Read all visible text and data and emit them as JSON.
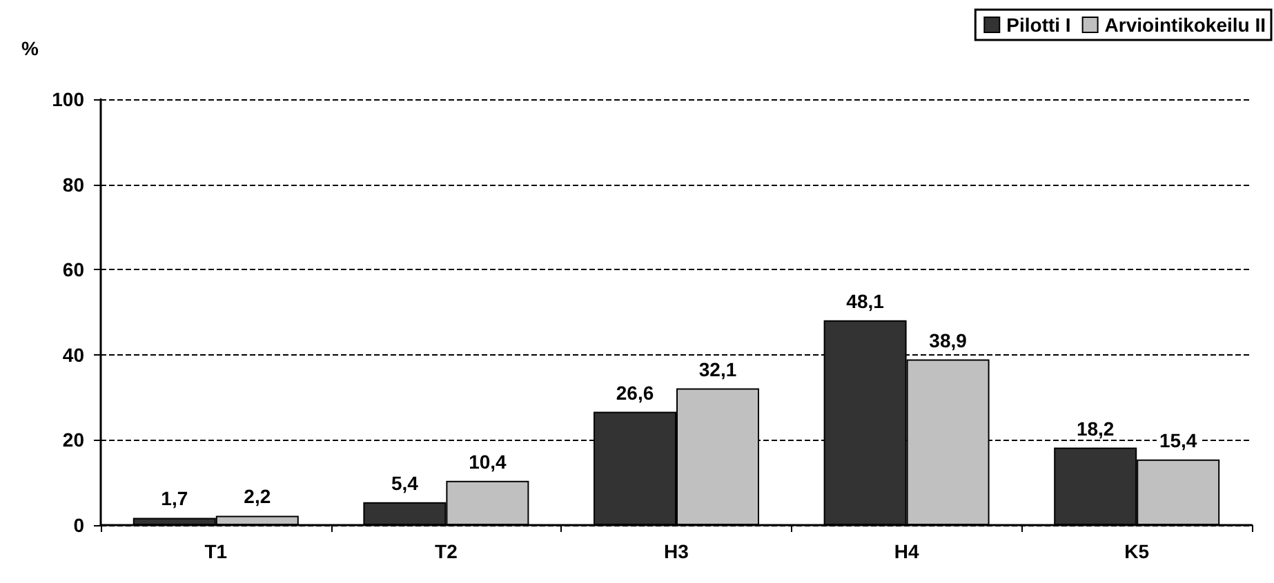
{
  "chart_data": {
    "type": "bar",
    "ylabel": "%",
    "categories": [
      "T1",
      "T2",
      "H3",
      "H4",
      "K5"
    ],
    "series": [
      {
        "name": "Pilotti I",
        "color": "#333333",
        "values": [
          1.7,
          5.4,
          26.6,
          48.1,
          18.2
        ],
        "value_labels": [
          "1,7",
          "5,4",
          "26,6",
          "48,1",
          "18,2"
        ]
      },
      {
        "name": "Arviointikokeilu II",
        "color": "#c0c0c0",
        "values": [
          2.2,
          10.4,
          32.1,
          38.9,
          15.4
        ],
        "value_labels": [
          "2,2",
          "10,4",
          "32,1",
          "38,9",
          "15,4"
        ]
      }
    ],
    "ylim": [
      0,
      100
    ],
    "yticks": [
      0,
      20,
      40,
      60,
      80,
      100
    ],
    "grid": "y",
    "legend": "top right"
  }
}
